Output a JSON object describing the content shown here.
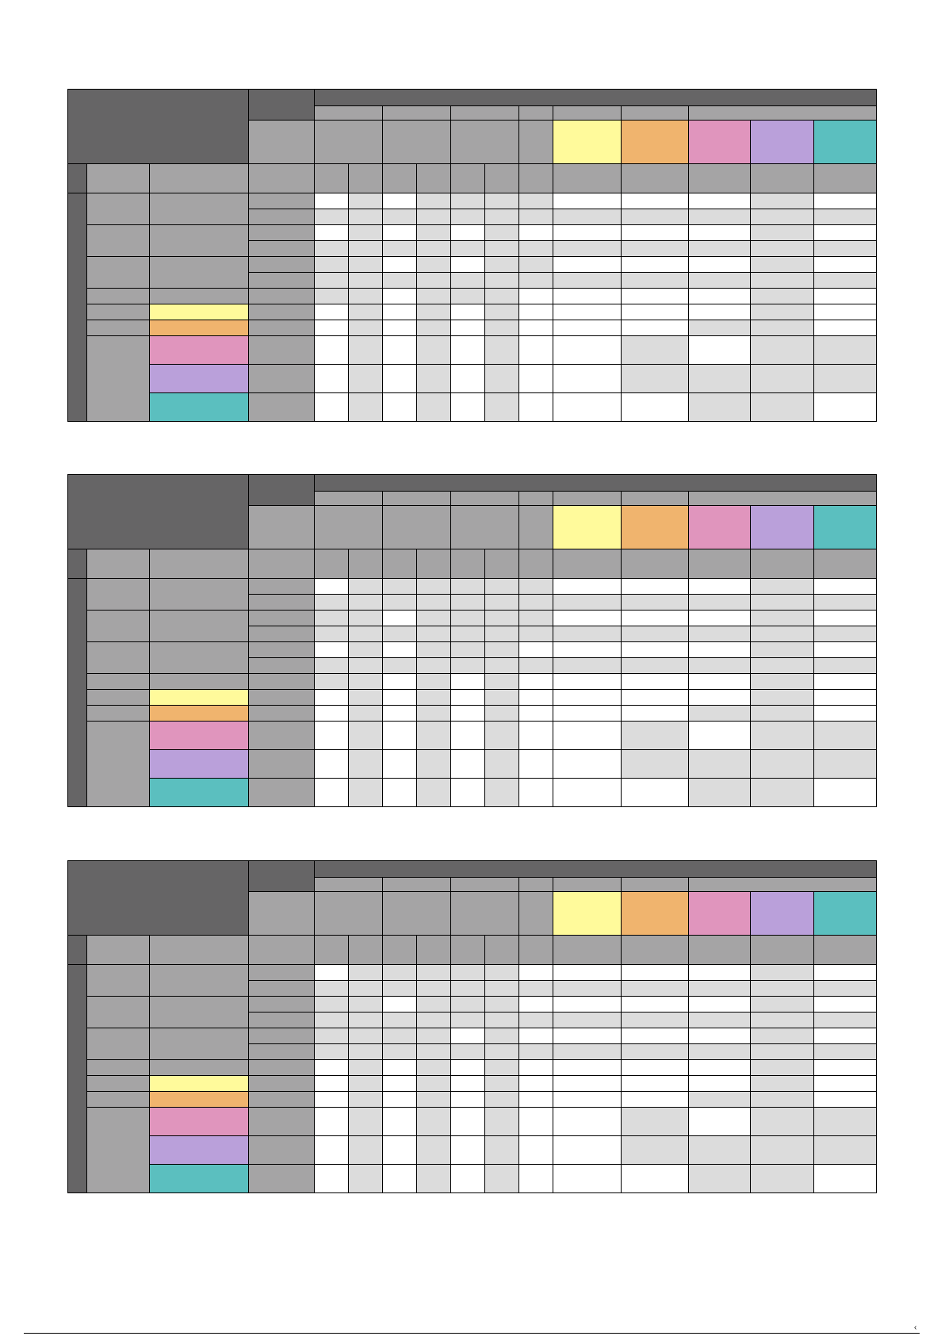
{
  "colors": {
    "header_dark": "#666566",
    "header_mid": "#a5a4a5",
    "cell_white": "#ffffff",
    "cell_grey": "#dcdcdc",
    "yellow": "#fffa9b",
    "orange": "#f0b46e",
    "pink": "#e095bd",
    "lavender": "#baa0da",
    "teal": "#5bbfbf"
  },
  "tables": [
    {
      "rows": [
        [
          "w",
          "g",
          "w",
          "g",
          "g",
          "g",
          "g",
          "w",
          "w",
          "w",
          "g",
          "w"
        ],
        [
          "g",
          "g",
          "g",
          "g",
          "g",
          "g",
          "g",
          "g",
          "g",
          "g",
          "g",
          "g"
        ],
        [
          "w",
          "g",
          "w",
          "g",
          "w",
          "g",
          "w",
          "w",
          "w",
          "w",
          "g",
          "w"
        ],
        [
          "g",
          "g",
          "g",
          "g",
          "g",
          "g",
          "g",
          "g",
          "g",
          "g",
          "g",
          "g"
        ],
        [
          "g",
          "g",
          "w",
          "g",
          "w",
          "g",
          "g",
          "w",
          "w",
          "w",
          "g",
          "w"
        ],
        [
          "g",
          "g",
          "g",
          "g",
          "g",
          "g",
          "g",
          "g",
          "g",
          "g",
          "g",
          "g"
        ],
        [
          "g",
          "g",
          "w",
          "g",
          "g",
          "g",
          "w",
          "w",
          "w",
          "w",
          "g",
          "w"
        ],
        [
          "w",
          "g",
          "w",
          "g",
          "w",
          "g",
          "w",
          "w",
          "w",
          "w",
          "g",
          "w"
        ],
        [
          "w",
          "g",
          "w",
          "g",
          "w",
          "g",
          "w",
          "w",
          "w",
          "g",
          "g",
          "w"
        ],
        [
          "w",
          "g",
          "w",
          "g",
          "w",
          "g",
          "w",
          "w",
          "g",
          "w",
          "g",
          "g"
        ],
        [
          "w",
          "g",
          "w",
          "g",
          "w",
          "g",
          "w",
          "w",
          "g",
          "g",
          "g",
          "g"
        ],
        [
          "w",
          "g",
          "w",
          "g",
          "w",
          "g",
          "w",
          "w",
          "w",
          "g",
          "g",
          "w"
        ]
      ]
    },
    {
      "rows": [
        [
          "w",
          "g",
          "g",
          "g",
          "g",
          "g",
          "g",
          "w",
          "w",
          "w",
          "g",
          "w"
        ],
        [
          "g",
          "g",
          "g",
          "g",
          "g",
          "g",
          "g",
          "g",
          "g",
          "g",
          "g",
          "g"
        ],
        [
          "g",
          "g",
          "w",
          "g",
          "g",
          "g",
          "g",
          "w",
          "w",
          "w",
          "g",
          "w"
        ],
        [
          "g",
          "g",
          "g",
          "g",
          "g",
          "g",
          "g",
          "g",
          "g",
          "g",
          "g",
          "g"
        ],
        [
          "w",
          "g",
          "w",
          "g",
          "g",
          "g",
          "w",
          "w",
          "w",
          "w",
          "g",
          "w"
        ],
        [
          "g",
          "g",
          "g",
          "g",
          "g",
          "g",
          "g",
          "g",
          "g",
          "g",
          "g",
          "g"
        ],
        [
          "g",
          "g",
          "w",
          "g",
          "w",
          "g",
          "w",
          "w",
          "w",
          "w",
          "g",
          "w"
        ],
        [
          "w",
          "g",
          "w",
          "g",
          "w",
          "g",
          "w",
          "w",
          "w",
          "w",
          "g",
          "w"
        ],
        [
          "w",
          "g",
          "w",
          "g",
          "w",
          "g",
          "w",
          "w",
          "w",
          "g",
          "g",
          "w"
        ],
        [
          "w",
          "g",
          "w",
          "g",
          "w",
          "g",
          "w",
          "w",
          "g",
          "w",
          "g",
          "g"
        ],
        [
          "w",
          "g",
          "w",
          "g",
          "w",
          "g",
          "w",
          "w",
          "g",
          "g",
          "g",
          "g"
        ],
        [
          "w",
          "g",
          "w",
          "g",
          "w",
          "g",
          "w",
          "w",
          "w",
          "g",
          "g",
          "w"
        ]
      ]
    },
    {
      "rows": [
        [
          "w",
          "g",
          "g",
          "g",
          "g",
          "g",
          "w",
          "w",
          "w",
          "w",
          "g",
          "w"
        ],
        [
          "g",
          "g",
          "g",
          "g",
          "g",
          "g",
          "g",
          "g",
          "g",
          "g",
          "g",
          "g"
        ],
        [
          "g",
          "g",
          "w",
          "g",
          "g",
          "g",
          "w",
          "w",
          "w",
          "w",
          "g",
          "w"
        ],
        [
          "g",
          "g",
          "g",
          "g",
          "g",
          "g",
          "g",
          "g",
          "g",
          "g",
          "g",
          "g"
        ],
        [
          "g",
          "g",
          "g",
          "g",
          "w",
          "g",
          "w",
          "w",
          "w",
          "w",
          "g",
          "w"
        ],
        [
          "g",
          "g",
          "g",
          "g",
          "g",
          "g",
          "g",
          "g",
          "g",
          "g",
          "g",
          "g"
        ],
        [
          "w",
          "g",
          "w",
          "g",
          "w",
          "g",
          "w",
          "w",
          "w",
          "w",
          "g",
          "w"
        ],
        [
          "w",
          "g",
          "w",
          "g",
          "w",
          "g",
          "w",
          "w",
          "w",
          "w",
          "g",
          "w"
        ],
        [
          "w",
          "g",
          "w",
          "g",
          "w",
          "g",
          "w",
          "w",
          "w",
          "g",
          "g",
          "w"
        ],
        [
          "w",
          "g",
          "w",
          "g",
          "w",
          "g",
          "w",
          "w",
          "g",
          "w",
          "g",
          "g"
        ],
        [
          "w",
          "g",
          "w",
          "g",
          "w",
          "g",
          "w",
          "w",
          "g",
          "g",
          "g",
          "g"
        ],
        [
          "w",
          "g",
          "w",
          "g",
          "w",
          "g",
          "w",
          "w",
          "w",
          "g",
          "g",
          "w"
        ]
      ]
    }
  ]
}
